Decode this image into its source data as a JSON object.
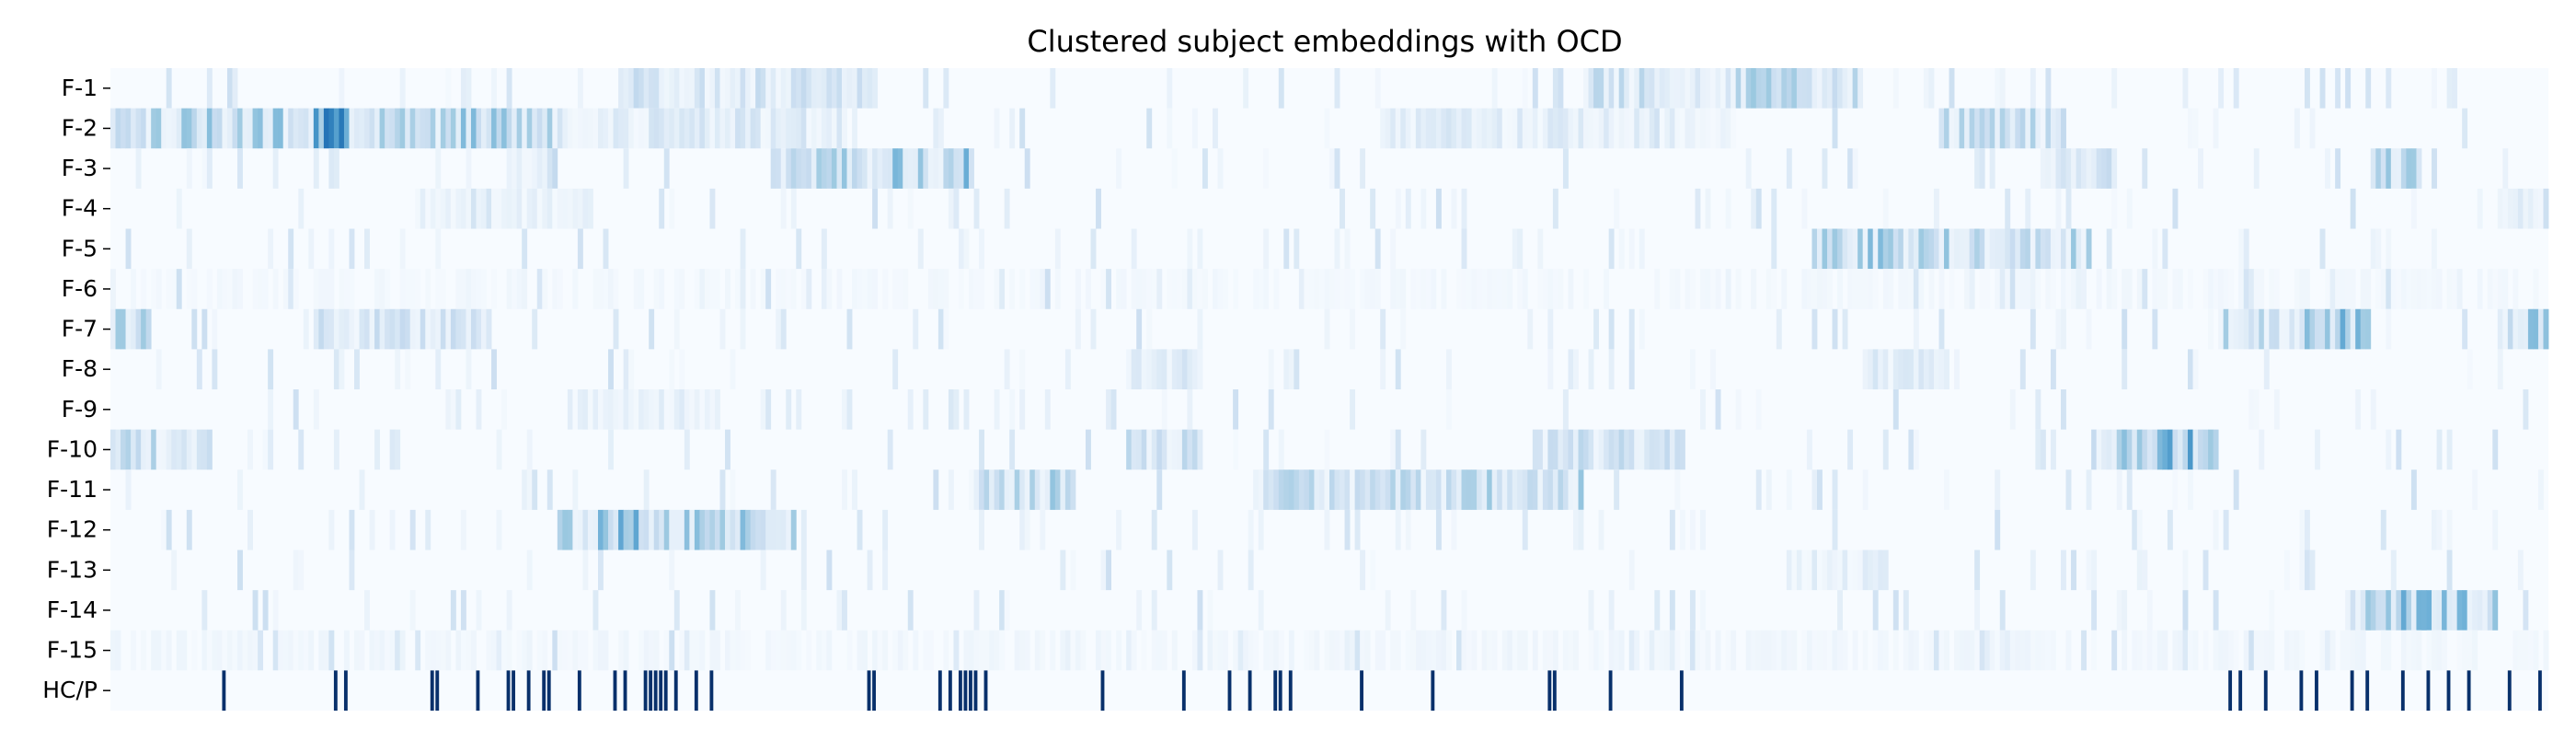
{
  "chart_data": {
    "type": "heatmap",
    "title": "Clustered subject embeddings with OCD",
    "xlabel": "",
    "ylabel": "",
    "row_labels": [
      "F-1",
      "F-2",
      "F-3",
      "F-4",
      "F-5",
      "F-6",
      "F-7",
      "F-8",
      "F-9",
      "F-10",
      "F-11",
      "F-12",
      "F-13",
      "F-14",
      "F-15",
      "HC/P"
    ],
    "n_subjects": 480,
    "colormap": "Blues",
    "colormap_stops": [
      "#f7fbff",
      "#deebf7",
      "#c6dbef",
      "#9ecae1",
      "#6baed6",
      "#4292c6",
      "#2171b5",
      "#08519c",
      "#08306b"
    ],
    "value_range": [
      0,
      1
    ],
    "grid": false,
    "factor_high_segments": [
      {
        "row": "F-1",
        "segments": [
          [
            100,
            150,
            0.2
          ],
          [
            290,
            345,
            0.22
          ],
          [
            320,
            345,
            0.3
          ]
        ]
      },
      {
        "row": "F-2",
        "segments": [
          [
            0,
            90,
            0.35
          ],
          [
            38,
            55,
            0.55
          ],
          [
            90,
            145,
            0.15
          ],
          [
            250,
            320,
            0.12
          ],
          [
            360,
            385,
            0.25
          ]
        ]
      },
      {
        "row": "F-3",
        "segments": [
          [
            78,
            88,
            0.2
          ],
          [
            130,
            170,
            0.3
          ],
          [
            150,
            170,
            0.4
          ],
          [
            380,
            395,
            0.2
          ],
          [
            445,
            455,
            0.3
          ]
        ]
      },
      {
        "row": "F-4",
        "segments": [
          [
            60,
            95,
            0.08
          ],
          [
            470,
            480,
            0.15
          ]
        ]
      },
      {
        "row": "F-5",
        "segments": [
          [
            335,
            390,
            0.3
          ],
          [
            345,
            380,
            0.35
          ]
        ]
      },
      {
        "row": "F-6",
        "segments": [
          [
            0,
            480,
            0.03
          ]
        ]
      },
      {
        "row": "F-7",
        "segments": [
          [
            0,
            8,
            0.35
          ],
          [
            40,
            75,
            0.2
          ],
          [
            415,
            445,
            0.3
          ],
          [
            430,
            443,
            0.4
          ],
          [
            470,
            480,
            0.35
          ]
        ]
      },
      {
        "row": "F-8",
        "segments": [
          [
            200,
            215,
            0.15
          ],
          [
            345,
            360,
            0.12
          ]
        ]
      },
      {
        "row": "F-9",
        "segments": [
          [
            90,
            120,
            0.1
          ]
        ]
      },
      {
        "row": "F-10",
        "segments": [
          [
            0,
            20,
            0.25
          ],
          [
            200,
            215,
            0.22
          ],
          [
            280,
            310,
            0.22
          ],
          [
            390,
            415,
            0.35
          ],
          [
            395,
            410,
            0.45
          ]
        ]
      },
      {
        "row": "F-11",
        "segments": [
          [
            170,
            190,
            0.3
          ],
          [
            225,
            290,
            0.25
          ],
          [
            270,
            290,
            0.3
          ]
        ]
      },
      {
        "row": "F-12",
        "segments": [
          [
            88,
            135,
            0.32
          ],
          [
            95,
            110,
            0.4
          ],
          [
            115,
            130,
            0.35
          ]
        ]
      },
      {
        "row": "F-13",
        "segments": [
          [
            330,
            350,
            0.1
          ]
        ]
      },
      {
        "row": "F-14",
        "segments": [
          [
            440,
            470,
            0.35
          ],
          [
            445,
            465,
            0.4
          ]
        ]
      },
      {
        "row": "F-15",
        "segments": [
          [
            0,
            480,
            0.04
          ]
        ]
      }
    ],
    "hcp_marker_positions": [
      22,
      44,
      46,
      63,
      64,
      72,
      78,
      79,
      82,
      85,
      86,
      92,
      99,
      101,
      105,
      106,
      107,
      108,
      109,
      111,
      115,
      118,
      149,
      150,
      163,
      165,
      167,
      168,
      169,
      170,
      172,
      195,
      211,
      220,
      224,
      229,
      230,
      232,
      246,
      260,
      283,
      284,
      295,
      309,
      417,
      419,
      424,
      431,
      434,
      441,
      444,
      451,
      456,
      460,
      464,
      472,
      478
    ]
  }
}
